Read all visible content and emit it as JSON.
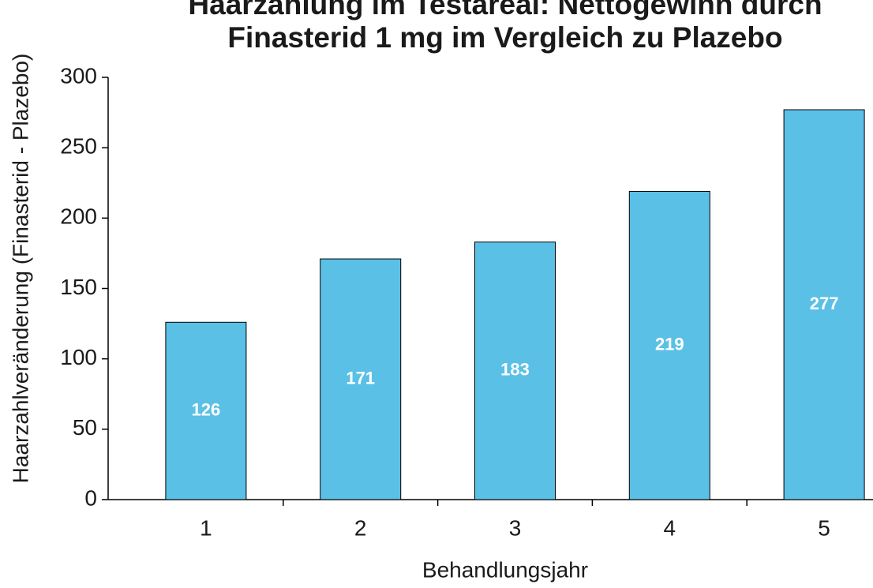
{
  "chart_data": {
    "type": "bar",
    "title": [
      "Haarzählung im Testareal: Nettogewinn durch",
      "Finasterid 1 mg im Vergleich zu Plazebo"
    ],
    "x_label": "Behandlungsjahr",
    "y_label": "Haarzahlveränderung (Finasterid - Plazebo)",
    "categories": [
      "1",
      "2",
      "3",
      "4",
      "5"
    ],
    "values": [
      126,
      171,
      183,
      219,
      277
    ],
    "color": "#5bc0e6",
    "ylim": [
      0,
      300
    ],
    "yticks": [
      0,
      50,
      100,
      150,
      200,
      250,
      300
    ]
  }
}
